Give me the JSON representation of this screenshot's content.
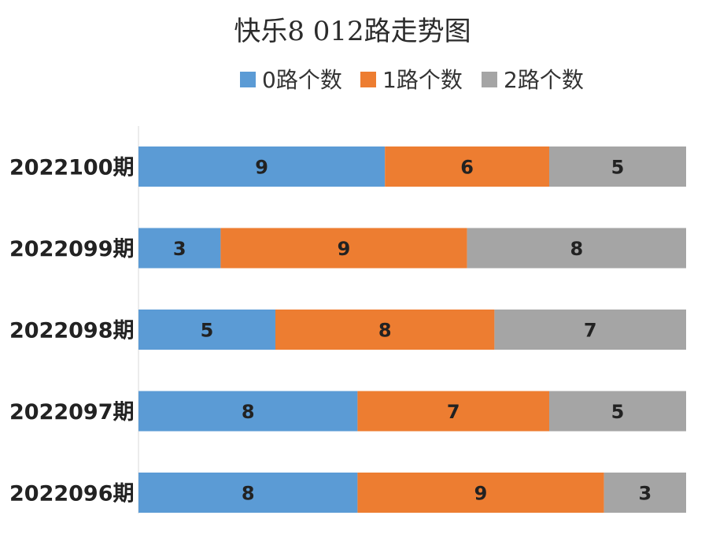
{
  "chart_data": {
    "type": "bar",
    "orientation": "horizontal",
    "stacked": true,
    "title": "快乐8 012路走势图",
    "categories": [
      "2022100期",
      "2022099期",
      "2022098期",
      "2022097期",
      "2022096期"
    ],
    "series": [
      {
        "name": "0路个数",
        "color": "#5b9bd5",
        "values": [
          9,
          3,
          5,
          8,
          8
        ]
      },
      {
        "name": "1路个数",
        "color": "#ed7d31",
        "values": [
          6,
          9,
          8,
          7,
          9
        ]
      },
      {
        "name": "2路个数",
        "color": "#a5a5a5",
        "values": [
          5,
          8,
          7,
          5,
          3
        ]
      }
    ],
    "xlim": [
      0,
      20
    ],
    "legend_position": "top",
    "grid": false,
    "data_labels": true
  }
}
